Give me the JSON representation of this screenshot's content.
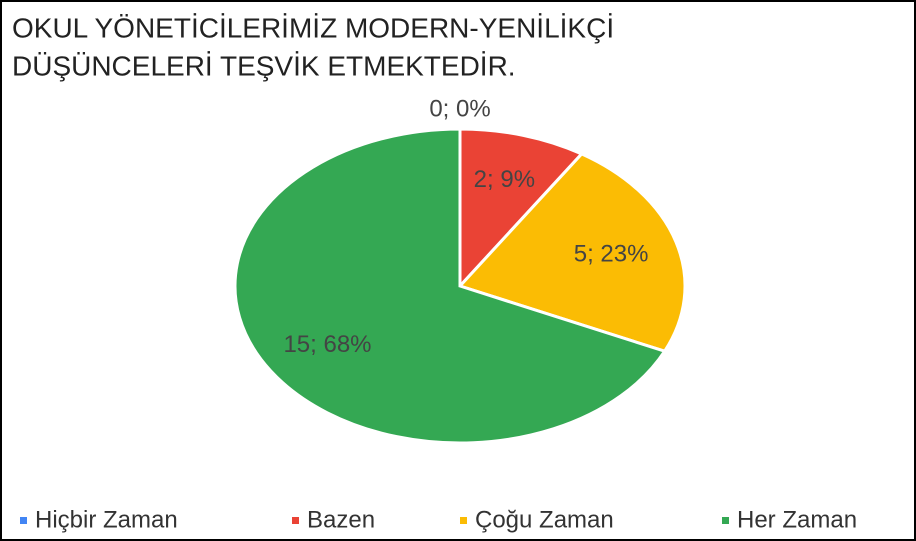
{
  "chart_data": {
    "type": "pie",
    "title": [
      "OKUL YÖNETİCİLERİMİZ MODERN-YENİLİKÇİ",
      "DÜŞÜNCELERİ TEŞVİK ETMEKTEDİR."
    ],
    "categories": [
      "Hiçbir Zaman",
      "Bazen",
      "Çoğu Zaman",
      "Her Zaman"
    ],
    "values": [
      0,
      2,
      5,
      15
    ],
    "value_labels": [
      "0; 0%",
      "2; 9%",
      "5; 23%",
      "15; 68%"
    ],
    "colors": [
      "#4285f4",
      "#ea4335",
      "#fbbc04",
      "#34a853"
    ],
    "legend": "bottom"
  }
}
